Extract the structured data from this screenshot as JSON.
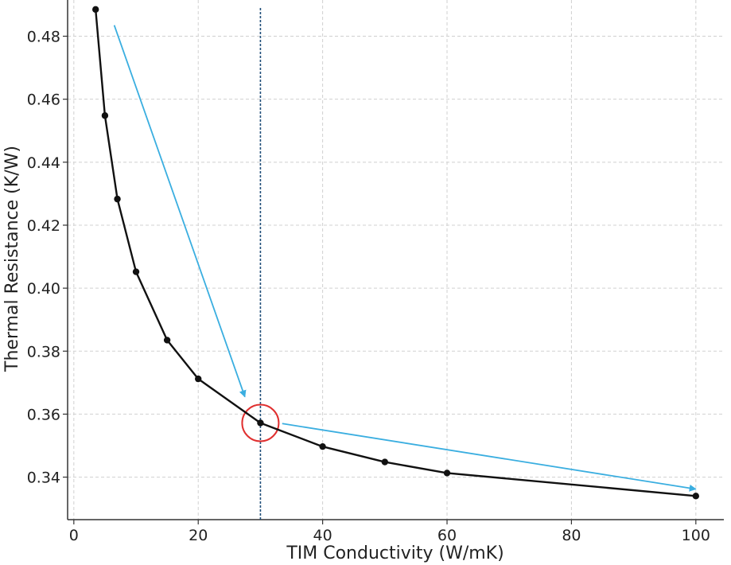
{
  "chart_data": {
    "type": "line",
    "xlabel": "TIM Conductivity (W/mK)",
    "ylabel": "Thermal Resistance (K/W)",
    "xlim": [
      -1,
      104.5
    ],
    "ylim": [
      0.3265,
      0.4915
    ],
    "xticks": [
      0,
      20,
      40,
      60,
      80,
      100
    ],
    "yticks": [
      0.34,
      0.36,
      0.38,
      0.4,
      0.42,
      0.44,
      0.46,
      0.48
    ],
    "ytick_labels": [
      "0.34",
      "0.36",
      "0.38",
      "0.40",
      "0.42",
      "0.44",
      "0.46",
      "0.48"
    ],
    "grid": true,
    "series": [
      {
        "color": "#111111",
        "x": [
          3.5,
          5,
          7,
          10,
          15,
          20,
          30,
          40,
          50,
          60,
          100
        ],
        "y": [
          0.4885,
          0.4548,
          0.4283,
          0.4052,
          0.3835,
          0.3712,
          0.3572,
          0.3497,
          0.3448,
          0.3413,
          0.334
        ]
      }
    ],
    "annotations": {
      "vline": {
        "x": 30,
        "color": "#1f4e79"
      },
      "circle": {
        "x": 30,
        "y": 0.3572,
        "color": "#e03030"
      },
      "arrows": [
        {
          "from": [
            6.5,
            0.4835
          ],
          "to": [
            27.5,
            0.3655
          ],
          "color": "#3aaee0"
        },
        {
          "from": [
            33.5,
            0.357
          ],
          "to": [
            100,
            0.3362
          ],
          "color": "#3aaee0"
        }
      ]
    }
  }
}
